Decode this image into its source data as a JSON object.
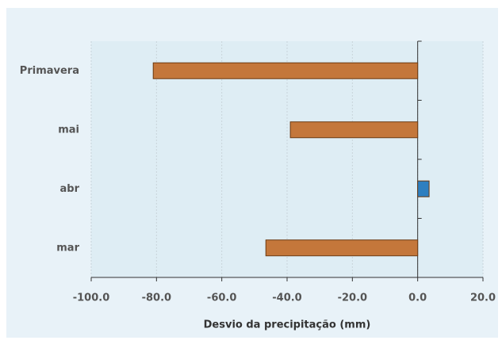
{
  "chart_data": {
    "type": "barh",
    "x_label": "Desvio da precipitação (mm)",
    "categories": [
      "mar",
      "abr",
      "mai",
      "Primavera"
    ],
    "values": [
      -46.5,
      3.5,
      -39,
      -81
    ],
    "colors": [
      "#c4773b",
      "#2e7fc0",
      "#c4773b",
      "#c4773b"
    ],
    "xlim": [
      -100,
      20
    ],
    "xticks": [
      {
        "value": -100,
        "label": "-100.0"
      },
      {
        "value": -80,
        "label": "-80.0"
      },
      {
        "value": -60,
        "label": "-60.0"
      },
      {
        "value": -40,
        "label": "-40.0"
      },
      {
        "value": -20,
        "label": "-20.0"
      },
      {
        "value": 0,
        "label": "0.0"
      },
      {
        "value": 20,
        "label": "20.0"
      }
    ],
    "grid": true
  }
}
